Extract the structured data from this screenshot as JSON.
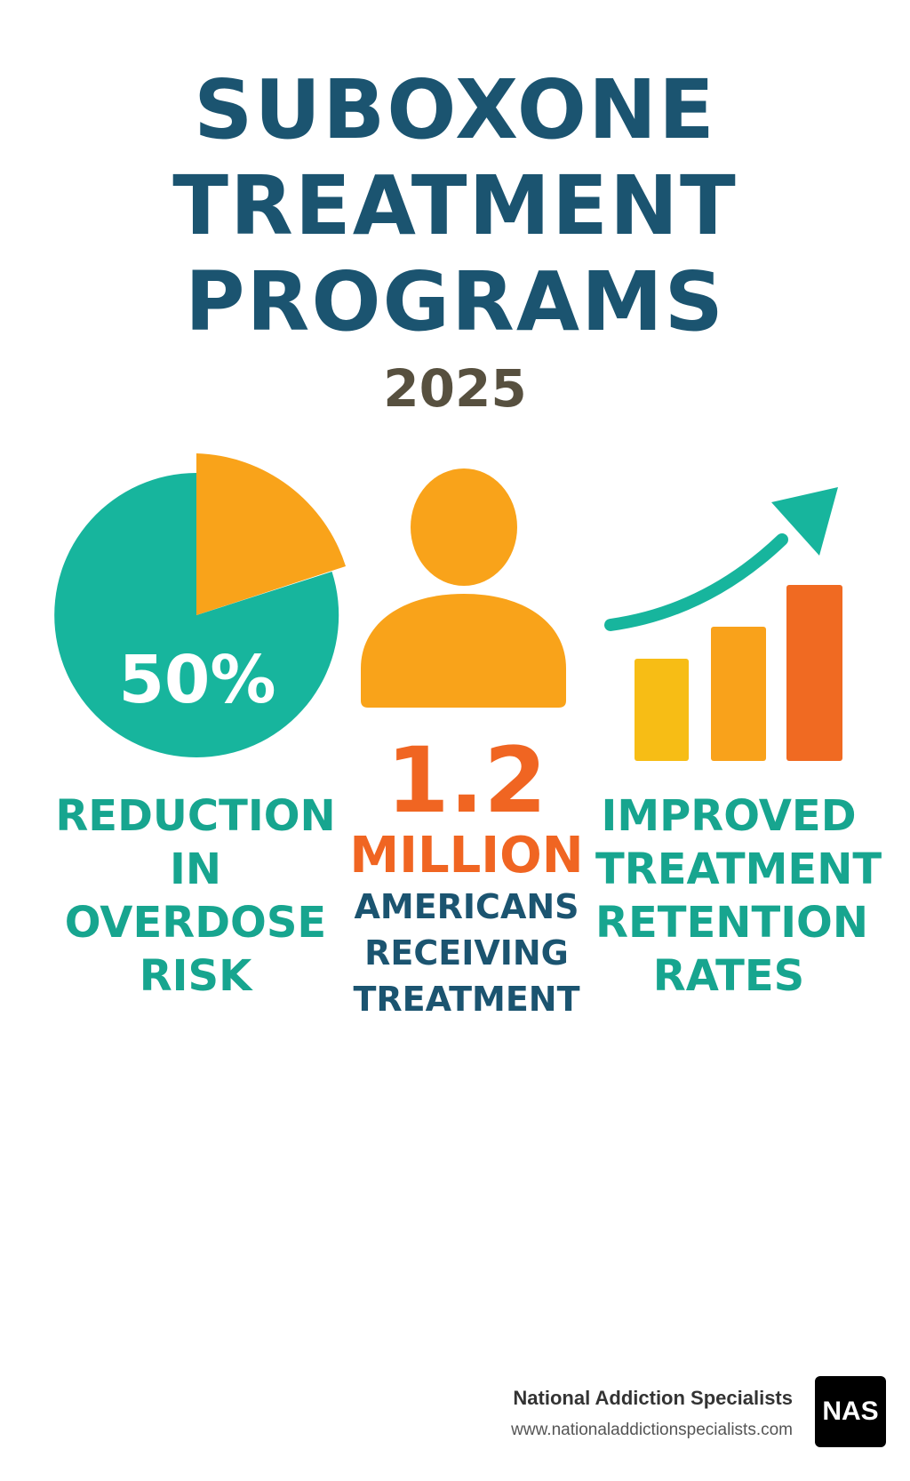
{
  "title": {
    "lines": [
      "SUBOXONE",
      "TREATMENT",
      "PROGRAMS"
    ],
    "year": "2025"
  },
  "stats": [
    {
      "value": "50%",
      "label_lines": [
        "REDUCTION",
        "IN OVERDOSE",
        "RISK"
      ]
    },
    {
      "value": "1.2",
      "unit": "MILLION",
      "label_lines": [
        "AMERICANS",
        "RECEIVING",
        "TREATMENT"
      ]
    },
    {
      "label_lines": [
        "IMPROVED",
        "TREATMENT",
        "RETENTION",
        "RATES"
      ]
    }
  ],
  "footer": {
    "brand_name": "National Addiction Specialists",
    "brand_url": "www.nationaladdictionspecialists.com",
    "logo_text": "NAS"
  },
  "colors": {
    "navy": "#1b5470",
    "teal": "#17a58f",
    "orange": "#f06522",
    "amber": "#f9a31a",
    "yellow": "#f7bd15",
    "year_brown": "#57503f"
  },
  "icons": [
    "pie-chart-icon",
    "person-icon",
    "bar-chart-up-arrow-icon"
  ]
}
